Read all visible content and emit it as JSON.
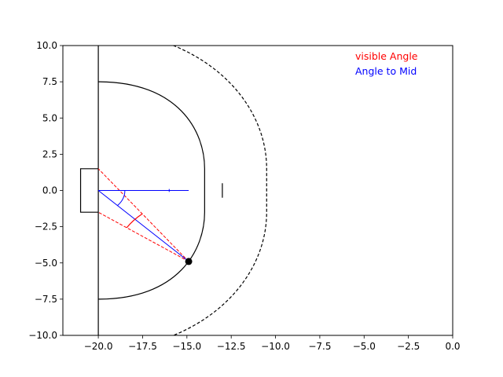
{
  "chart_data": {
    "type": "line",
    "title": "",
    "xlabel": "",
    "ylabel": "",
    "xlim": [
      -22,
      0
    ],
    "ylim": [
      -10,
      10
    ],
    "x_ticks": [
      -20,
      -17.5,
      -15,
      -12.5,
      -10,
      -7.5,
      -5,
      -2.5,
      0
    ],
    "x_tick_labels": [
      "−20.0",
      "−17.5",
      "−15.0",
      "−12.5",
      "−10.0",
      "−7.5",
      "−5.0",
      "−2.5",
      "0.0"
    ],
    "y_ticks": [
      10,
      7.5,
      5,
      2.5,
      0,
      -2.5,
      -5,
      -7.5,
      -10
    ],
    "y_tick_labels": [
      "10.0",
      "7.5",
      "5.0",
      "2.5",
      "0.0",
      "−2.5",
      "−5.0",
      "−7.5",
      "−10.0"
    ],
    "grid": false,
    "legend_position": "top-right",
    "legend": [
      {
        "label": "visible Angle",
        "color": "#ff0000"
      },
      {
        "label": "Angle to Mid",
        "color": "#0000ff"
      }
    ],
    "court": {
      "goal_line_x": -20,
      "goal_box": {
        "x": [
          -21,
          -20
        ],
        "y": [
          -1.5,
          1.5
        ]
      },
      "crease": {
        "center_x": -20,
        "radius": 7.5,
        "straight_x": -14,
        "straight_half_height": 1.5
      },
      "dashed_arc": {
        "center_x": -20,
        "radius": 11,
        "straight_half_height": 1.5
      },
      "short_marker": {
        "x": -13,
        "y": [
          -0.5,
          0.5
        ]
      },
      "mid_tick": {
        "x": -16,
        "y": [
          -0.1,
          0.1
        ]
      }
    },
    "point": {
      "x": -14.9,
      "y": -4.9
    },
    "series": [
      {
        "name": "visible Angle",
        "color": "#ff0000",
        "lines": [
          [
            [
              -14.9,
              -4.9
            ],
            [
              -20,
              1.5
            ]
          ],
          [
            [
              -14.9,
              -4.9
            ],
            [
              -20,
              -1.5
            ]
          ]
        ]
      },
      {
        "name": "Angle to Mid",
        "color": "#0000ff",
        "lines": [
          [
            [
              -14.9,
              -4.9
            ],
            [
              -20,
              0
            ]
          ],
          [
            [
              -20,
              0
            ],
            [
              -14.9,
              0
            ]
          ]
        ]
      }
    ]
  }
}
